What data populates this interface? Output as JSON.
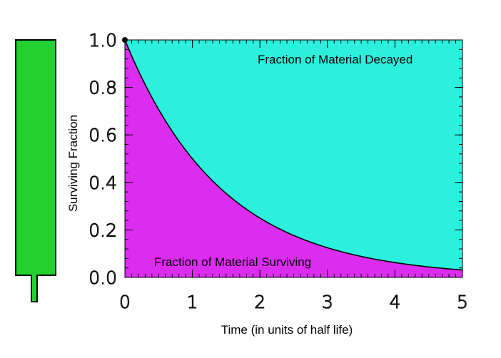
{
  "colors": {
    "decayed_fill": "#2cefdd",
    "surviving_fill": "#dc2cef",
    "curve": "#000000",
    "indicator_fill": "#22d12d",
    "indicator_border": "#000000"
  },
  "indicator": {
    "icon": "gauge-bar-icon",
    "level": 1.0
  },
  "chart_data": {
    "type": "area",
    "xlabel": "Time (in units of half life)",
    "ylabel": "Surviving Fraction",
    "xlim": [
      0,
      5
    ],
    "ylim": [
      0,
      1
    ],
    "x_ticks": [
      {
        "value": 0,
        "label": "0"
      },
      {
        "value": 1,
        "label": "1"
      },
      {
        "value": 2,
        "label": "2"
      },
      {
        "value": 3,
        "label": "3"
      },
      {
        "value": 4,
        "label": "4"
      },
      {
        "value": 5,
        "label": "5"
      }
    ],
    "y_ticks": [
      {
        "value": 0,
        "label": "0.0"
      },
      {
        "value": 0.2,
        "label": "0.2"
      },
      {
        "value": 0.4,
        "label": "0.4"
      },
      {
        "value": 0.6,
        "label": "0.6"
      },
      {
        "value": 0.8,
        "label": "0.8"
      },
      {
        "value": 1.0,
        "label": "1.0"
      }
    ],
    "x_minor_step": 0.1,
    "y_minor_step": 0.04,
    "series": [
      {
        "x": [
          0,
          0.25,
          0.5,
          0.75,
          1,
          1.25,
          1.5,
          1.75,
          2,
          2.25,
          2.5,
          2.75,
          3,
          3.25,
          3.5,
          3.75,
          4,
          4.25,
          4.5,
          4.75,
          5
        ],
        "values": [
          1.0,
          0.841,
          0.707,
          0.595,
          0.5,
          0.42,
          0.354,
          0.297,
          0.25,
          0.21,
          0.177,
          0.149,
          0.125,
          0.105,
          0.088,
          0.074,
          0.063,
          0.053,
          0.044,
          0.037,
          0.031
        ]
      }
    ],
    "marker": {
      "x": 0,
      "y": 1.0
    },
    "annotations": [
      {
        "region": "decayed",
        "text": "Fraction of Material Decayed"
      },
      {
        "region": "surviving",
        "text": "Fraction of Material Surviving"
      }
    ],
    "grid": false,
    "legend": "none"
  }
}
